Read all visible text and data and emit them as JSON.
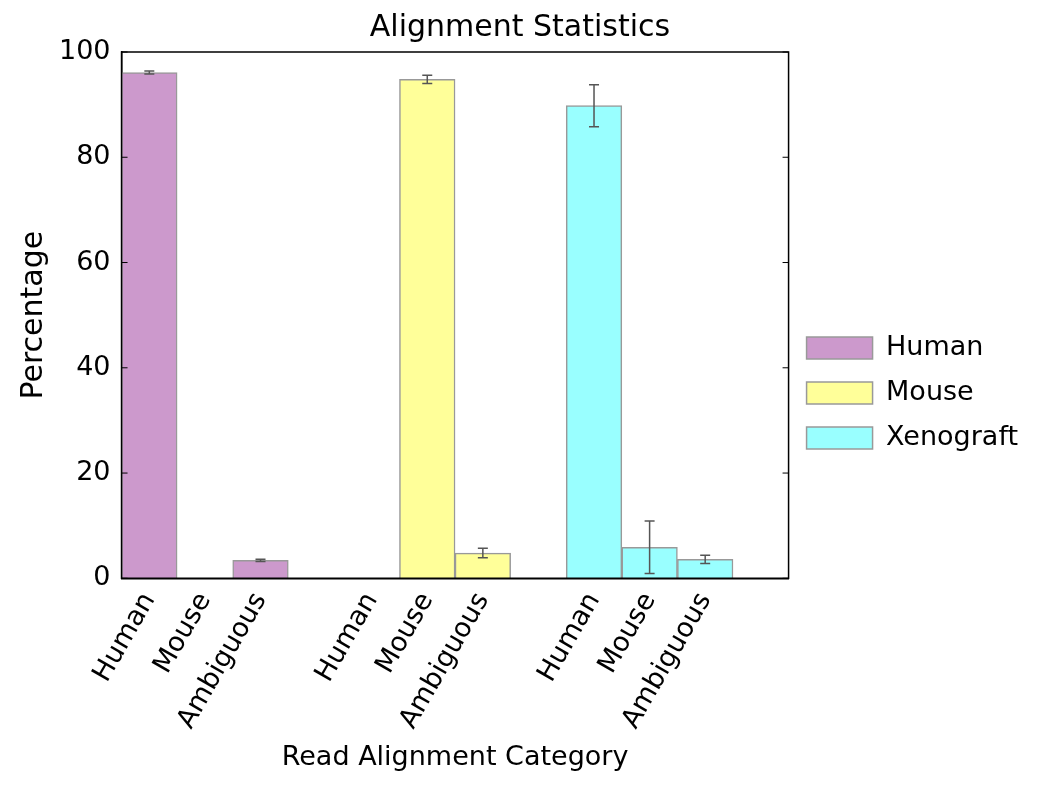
{
  "chart_data": {
    "type": "bar",
    "title": "Alignment Statistics",
    "xlabel": "Read Alignment Category",
    "ylabel": "Percentage",
    "categories": [
      "Human",
      "Mouse",
      "Ambiguous",
      null,
      "Human",
      "Mouse",
      "Ambiguous",
      null,
      "Human",
      "Mouse",
      "Ambiguous",
      null
    ],
    "series": [
      {
        "name": "Human",
        "color": "#cc99cc",
        "values": [
          96.1,
          null,
          3.4,
          null,
          null,
          null,
          null,
          null,
          null,
          null,
          null,
          null
        ],
        "errors": [
          0.3,
          null,
          0.2,
          null,
          null,
          null,
          null,
          null,
          null,
          null,
          null,
          null
        ]
      },
      {
        "name": "Mouse",
        "color": "#ffff99",
        "values": [
          null,
          null,
          null,
          null,
          0,
          94.8,
          4.8,
          null,
          null,
          null,
          null,
          null
        ],
        "errors": [
          null,
          null,
          null,
          null,
          null,
          0.8,
          0.9,
          null,
          null,
          null,
          null,
          null
        ]
      },
      {
        "name": "Xenograft",
        "color": "#99ffff",
        "values": [
          null,
          null,
          null,
          null,
          null,
          null,
          null,
          null,
          89.8,
          5.9,
          3.6,
          null
        ],
        "errors": [
          null,
          null,
          null,
          null,
          null,
          null,
          null,
          null,
          4,
          5,
          0.8,
          null
        ]
      }
    ],
    "ylim": [
      0,
      100
    ],
    "yticks": [
      0,
      20,
      40,
      60,
      80,
      100
    ],
    "grid": false,
    "legend": "right"
  }
}
